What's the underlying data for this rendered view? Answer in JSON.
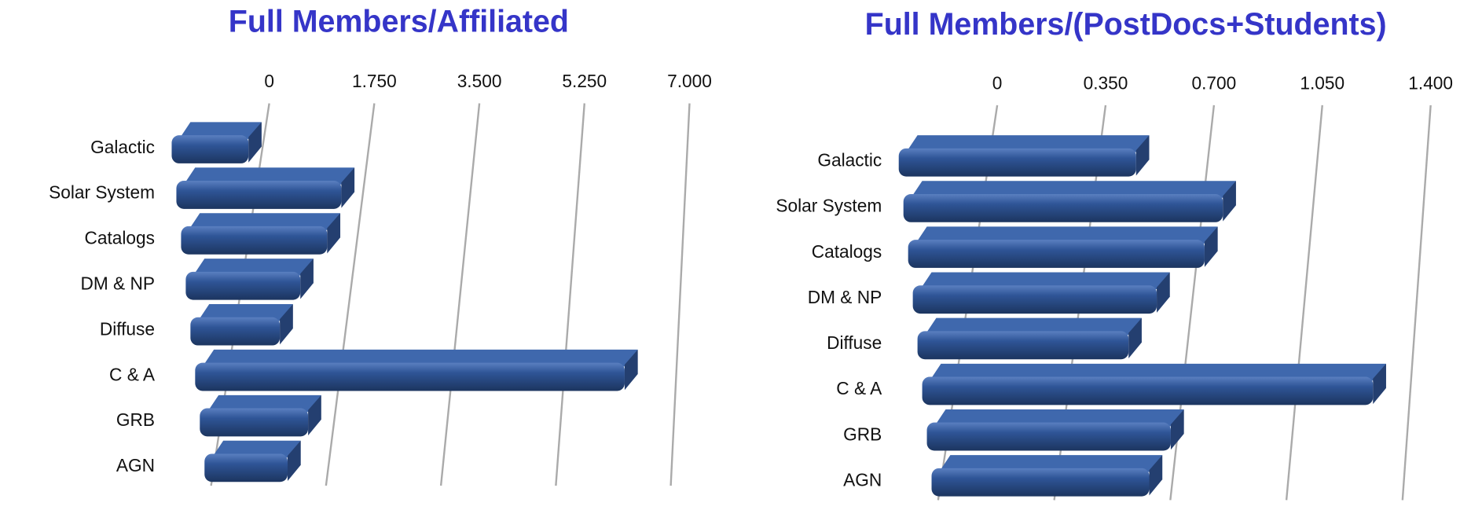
{
  "chart_data": [
    {
      "type": "bar",
      "orientation": "horizontal",
      "title": "Full Members/Affiliated",
      "title_color": "#3535c8",
      "color": "#2f5597",
      "categories": [
        "Galactic",
        "Solar System",
        "Catalogs",
        "DM & NP",
        "Diffuse",
        "C & A",
        "GRB",
        "AGN"
      ],
      "values": [
        1.1,
        2.5,
        2.2,
        1.7,
        1.3,
        6.7,
        1.6,
        1.2
      ],
      "xlim": [
        0,
        7
      ],
      "xticks": [
        0,
        {
          "value": 1.75,
          "label": "1.750"
        },
        {
          "value": 3.5,
          "label": "3.500"
        },
        {
          "value": 5.25,
          "label": "5.250"
        },
        {
          "value": 7,
          "label": "7.000"
        }
      ],
      "grid": true
    },
    {
      "type": "bar",
      "orientation": "horizontal",
      "title": "Full Members/(PostDocs+Students)",
      "title_color": "#3535c8",
      "color": "#2f5597",
      "categories": [
        "Galactic",
        "Solar System",
        "Catalogs",
        "DM & NP",
        "Diffuse",
        "C & A",
        "GRB",
        "AGN"
      ],
      "values": [
        0.7,
        0.95,
        0.88,
        0.72,
        0.62,
        1.35,
        0.72,
        0.64
      ],
      "xlim": [
        0,
        1.4
      ],
      "xticks": [
        0,
        {
          "value": 0.35,
          "label": "0.350"
        },
        {
          "value": 0.7,
          "label": "0.700"
        },
        {
          "value": 1.05,
          "label": "1.050"
        },
        {
          "value": 1.4,
          "label": "1.400"
        }
      ],
      "grid": true
    }
  ]
}
